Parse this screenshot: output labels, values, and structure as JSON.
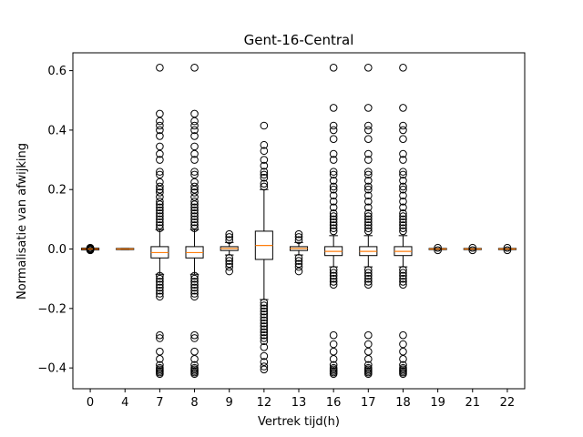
{
  "chart_data": {
    "type": "box",
    "title": "Gent-16-Central",
    "xlabel": "Vertrek tijd(h)",
    "ylabel": "Normalisatie van afwijking",
    "ylim": [
      -0.47,
      0.66
    ],
    "yticks": [
      -0.4,
      -0.2,
      0.0,
      0.2,
      0.4,
      0.6
    ],
    "ytick_labels": [
      "−0.4",
      "−0.2",
      "0.0",
      "0.2",
      "0.4",
      "0.6"
    ],
    "grid": false,
    "colors": {
      "box": "#000000",
      "median": "#ff7f0e",
      "background": "#ffffff"
    },
    "categories": [
      "0",
      "4",
      "7",
      "8",
      "9",
      "12",
      "13",
      "16",
      "17",
      "18",
      "19",
      "21",
      "22"
    ],
    "boxes": [
      {
        "category": "0",
        "q1": -0.003,
        "median": 0.0,
        "q3": 0.003,
        "whisker_low": -0.003,
        "whisker_high": 0.003,
        "fliers": [
          -0.004,
          -0.002,
          0.0,
          0.002,
          0.004
        ]
      },
      {
        "category": "4",
        "q1": -0.002,
        "median": 0.0,
        "q3": 0.002,
        "whisker_low": -0.002,
        "whisker_high": 0.002,
        "fliers": []
      },
      {
        "category": "7",
        "q1": -0.03,
        "median": -0.012,
        "q3": 0.008,
        "whisker_low": -0.085,
        "whisker_high": 0.065,
        "fliers": [
          0.61,
          0.455,
          0.43,
          0.415,
          0.4,
          0.38,
          0.345,
          0.32,
          0.3,
          0.26,
          0.25,
          0.225,
          0.21,
          0.2,
          0.19,
          0.175,
          0.16,
          0.15,
          0.14,
          0.13,
          0.12,
          0.11,
          0.1,
          0.09,
          0.08,
          0.07,
          -0.09,
          -0.1,
          -0.11,
          -0.12,
          -0.13,
          -0.14,
          -0.15,
          -0.16,
          -0.29,
          -0.3,
          -0.345,
          -0.37,
          -0.39,
          -0.4,
          -0.405,
          -0.41,
          -0.415,
          -0.42
        ]
      },
      {
        "category": "8",
        "q1": -0.03,
        "median": -0.012,
        "q3": 0.008,
        "whisker_low": -0.085,
        "whisker_high": 0.065,
        "fliers": [
          0.61,
          0.455,
          0.43,
          0.415,
          0.4,
          0.38,
          0.345,
          0.32,
          0.3,
          0.26,
          0.25,
          0.225,
          0.21,
          0.2,
          0.19,
          0.175,
          0.16,
          0.15,
          0.14,
          0.13,
          0.12,
          0.11,
          0.1,
          0.09,
          0.08,
          0.07,
          -0.09,
          -0.1,
          -0.11,
          -0.12,
          -0.13,
          -0.14,
          -0.15,
          -0.16,
          -0.29,
          -0.3,
          -0.345,
          -0.37,
          -0.39,
          -0.4,
          -0.405,
          -0.41,
          -0.415,
          -0.42
        ]
      },
      {
        "category": "9",
        "q1": -0.005,
        "median": 0.002,
        "q3": 0.008,
        "whisker_low": -0.02,
        "whisker_high": 0.022,
        "fliers": [
          0.05,
          0.04,
          0.03,
          -0.03,
          -0.04,
          -0.05,
          -0.06,
          -0.075
        ]
      },
      {
        "category": "12",
        "q1": -0.035,
        "median": 0.012,
        "q3": 0.06,
        "whisker_low": -0.17,
        "whisker_high": 0.2,
        "fliers": [
          0.415,
          0.35,
          0.33,
          0.3,
          0.28,
          0.26,
          0.25,
          0.24,
          0.22,
          0.21,
          -0.18,
          -0.19,
          -0.2,
          -0.21,
          -0.22,
          -0.23,
          -0.24,
          -0.25,
          -0.26,
          -0.27,
          -0.28,
          -0.29,
          -0.3,
          -0.31,
          -0.33,
          -0.36,
          -0.38,
          -0.395,
          -0.405
        ]
      },
      {
        "category": "13",
        "q1": -0.005,
        "median": 0.002,
        "q3": 0.008,
        "whisker_low": -0.02,
        "whisker_high": 0.022,
        "fliers": [
          0.05,
          0.04,
          0.03,
          -0.03,
          -0.04,
          -0.05,
          -0.06,
          -0.075
        ]
      },
      {
        "category": "16",
        "q1": -0.022,
        "median": -0.008,
        "q3": 0.008,
        "whisker_low": -0.06,
        "whisker_high": 0.045,
        "fliers": [
          0.61,
          0.475,
          0.415,
          0.4,
          0.37,
          0.32,
          0.3,
          0.26,
          0.25,
          0.23,
          0.21,
          0.2,
          0.18,
          0.16,
          0.14,
          0.12,
          0.11,
          0.1,
          0.09,
          0.08,
          0.07,
          0.06,
          -0.07,
          -0.08,
          -0.09,
          -0.1,
          -0.11,
          -0.12,
          -0.29,
          -0.32,
          -0.345,
          -0.37,
          -0.39,
          -0.4,
          -0.405,
          -0.41,
          -0.415,
          -0.42
        ]
      },
      {
        "category": "17",
        "q1": -0.022,
        "median": -0.008,
        "q3": 0.008,
        "whisker_low": -0.06,
        "whisker_high": 0.045,
        "fliers": [
          0.61,
          0.475,
          0.415,
          0.4,
          0.37,
          0.32,
          0.3,
          0.26,
          0.25,
          0.23,
          0.21,
          0.2,
          0.18,
          0.16,
          0.14,
          0.12,
          0.11,
          0.1,
          0.09,
          0.08,
          0.07,
          0.06,
          -0.07,
          -0.08,
          -0.09,
          -0.1,
          -0.11,
          -0.12,
          -0.29,
          -0.32,
          -0.345,
          -0.37,
          -0.39,
          -0.4,
          -0.405,
          -0.41,
          -0.415,
          -0.42
        ]
      },
      {
        "category": "18",
        "q1": -0.022,
        "median": -0.008,
        "q3": 0.008,
        "whisker_low": -0.06,
        "whisker_high": 0.045,
        "fliers": [
          0.61,
          0.475,
          0.415,
          0.4,
          0.37,
          0.32,
          0.3,
          0.26,
          0.25,
          0.23,
          0.21,
          0.2,
          0.18,
          0.16,
          0.14,
          0.12,
          0.11,
          0.1,
          0.09,
          0.08,
          0.07,
          0.06,
          -0.07,
          -0.08,
          -0.09,
          -0.1,
          -0.11,
          -0.12,
          -0.29,
          -0.32,
          -0.345,
          -0.37,
          -0.39,
          -0.4,
          -0.405,
          -0.41,
          -0.415,
          -0.42
        ]
      },
      {
        "category": "19",
        "q1": -0.002,
        "median": 0.0,
        "q3": 0.002,
        "whisker_low": -0.002,
        "whisker_high": 0.002,
        "fliers": [
          -0.004,
          0.004
        ]
      },
      {
        "category": "21",
        "q1": -0.002,
        "median": 0.0,
        "q3": 0.002,
        "whisker_low": -0.002,
        "whisker_high": 0.002,
        "fliers": [
          -0.004,
          0.004
        ]
      },
      {
        "category": "22",
        "q1": -0.002,
        "median": 0.0,
        "q3": 0.002,
        "whisker_low": -0.002,
        "whisker_high": 0.002,
        "fliers": [
          -0.004,
          0.004
        ]
      }
    ]
  }
}
